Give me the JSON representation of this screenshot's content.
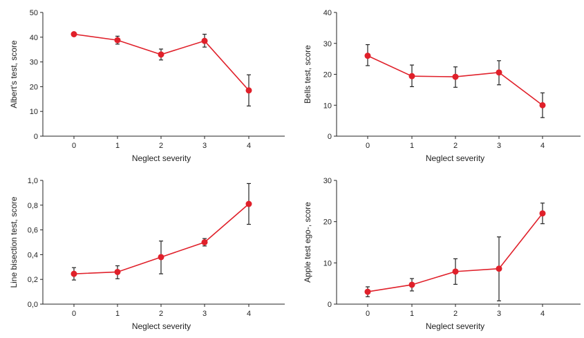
{
  "style": {
    "line_color": "#e0202a",
    "axis_color": "#222222",
    "errorbar_color": "#222222"
  },
  "chart_data": [
    {
      "type": "line",
      "xlabel": "Neglect severity",
      "ylabel": "Albert's test, score",
      "x": [
        0,
        1,
        2,
        3,
        4
      ],
      "xticks": [
        "0",
        "1",
        "2",
        "3",
        "4"
      ],
      "yticks": [
        "0",
        "10",
        "20",
        "30",
        "40",
        "50"
      ],
      "ylim": [
        0,
        50
      ],
      "grid": false,
      "series": [
        {
          "values": [
            41.2,
            38.8,
            33.0,
            38.5,
            18.5
          ],
          "err_low": [
            41.2,
            37.2,
            30.8,
            36.0,
            12.2
          ],
          "err_high": [
            41.2,
            40.4,
            35.2,
            41.2,
            24.8
          ]
        }
      ]
    },
    {
      "type": "line",
      "xlabel": "Neglect severity",
      "ylabel": "Bells test, score",
      "x": [
        0,
        1,
        2,
        3,
        4
      ],
      "xticks": [
        "0",
        "1",
        "2",
        "3",
        "4"
      ],
      "yticks": [
        "0",
        "10",
        "20",
        "30",
        "40"
      ],
      "ylim": [
        0,
        40
      ],
      "grid": false,
      "series": [
        {
          "values": [
            26.0,
            19.4,
            19.2,
            20.6,
            10.0
          ],
          "err_low": [
            22.8,
            16.0,
            15.8,
            16.6,
            6.0
          ],
          "err_high": [
            29.6,
            23.0,
            22.4,
            24.4,
            14.0
          ]
        }
      ]
    },
    {
      "type": "line",
      "xlabel": "Neglect severity",
      "ylabel": "Line bisection test, score",
      "x": [
        0,
        1,
        2,
        3,
        4
      ],
      "xticks": [
        "0",
        "1",
        "2",
        "3",
        "4"
      ],
      "yticks": [
        "0,0",
        "0,2",
        "0,4",
        "0,6",
        "0,8",
        "1,0"
      ],
      "ylim": [
        0,
        1.0
      ],
      "grid": false,
      "series": [
        {
          "values": [
            0.245,
            0.26,
            0.38,
            0.5,
            0.81
          ],
          "err_low": [
            0.195,
            0.205,
            0.245,
            0.47,
            0.645
          ],
          "err_high": [
            0.295,
            0.31,
            0.51,
            0.53,
            0.975
          ]
        }
      ]
    },
    {
      "type": "line",
      "xlabel": "Neglect severity",
      "ylabel": "Apple test ego-, score",
      "x": [
        0,
        1,
        2,
        3,
        4
      ],
      "xticks": [
        "0",
        "1",
        "2",
        "3",
        "4"
      ],
      "yticks": [
        "0",
        "10",
        "20",
        "30"
      ],
      "ylim": [
        0,
        30
      ],
      "grid": false,
      "series": [
        {
          "values": [
            3.0,
            4.7,
            7.9,
            8.6,
            22.0
          ],
          "err_low": [
            1.8,
            3.2,
            4.8,
            0.8,
            19.5
          ],
          "err_high": [
            4.2,
            6.2,
            11.0,
            16.3,
            24.5
          ]
        }
      ]
    }
  ]
}
